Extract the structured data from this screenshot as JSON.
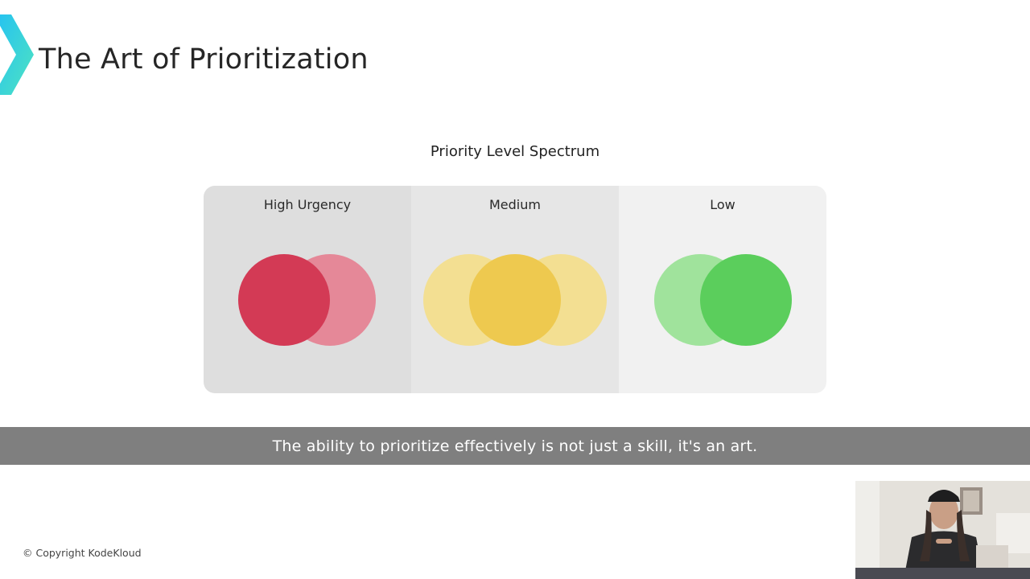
{
  "slide": {
    "title": "The Art of Prioritization"
  },
  "spectrum": {
    "title": "Priority Level Spectrum",
    "levels": [
      {
        "label": "High Urgency",
        "primary_color": "#d33a55",
        "secondary_color": "#e58898"
      },
      {
        "label": "Medium",
        "primary_color": "#eec94f",
        "secondary_color": "#f3df92"
      },
      {
        "label": "Low",
        "primary_color": "#5bce5c",
        "secondary_color": "#a0e39c"
      }
    ]
  },
  "caption": {
    "text": "The ability to prioritize effectively is not just a skill, it's an art."
  },
  "footer": {
    "copyright": "© Copyright KodeKloud"
  },
  "colors": {
    "logo_gradient_start": "#27c4ef",
    "logo_gradient_end": "#4fe3c1",
    "caption_bar": "#7f7f7f"
  },
  "icons": {
    "logo": "kodekloud-chevron-logo"
  }
}
